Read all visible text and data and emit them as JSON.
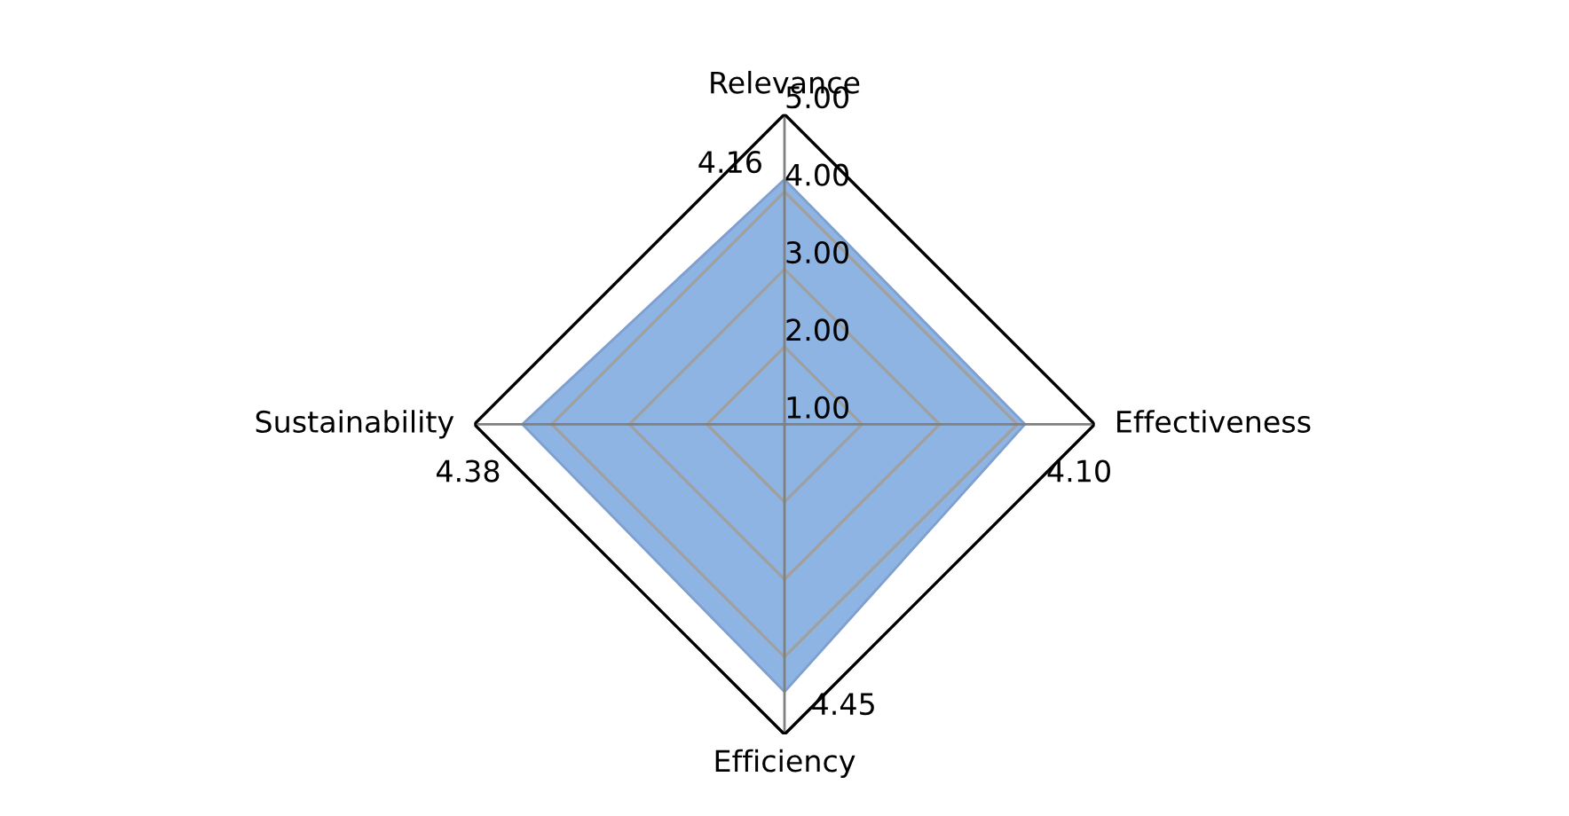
{
  "chart_data": {
    "type": "radar",
    "categories": [
      "Relevance",
      "Effectiveness",
      "Efficiency",
      "Sustainability"
    ],
    "series": [
      {
        "color": "#8eb4e3",
        "values": [
          4.16,
          4.1,
          4.45,
          4.38
        ],
        "value_labels": [
          "4.16",
          "4.10",
          "4.45",
          "4.38"
        ]
      }
    ],
    "ylim": [
      1,
      5
    ],
    "yticks": [
      {
        "value": 1,
        "label": "1.00"
      },
      {
        "value": 2,
        "label": "2.00"
      },
      {
        "value": 3,
        "label": "3.00"
      },
      {
        "value": 4,
        "label": "4.00"
      },
      {
        "value": 5,
        "label": "5.00"
      }
    ],
    "grid": true
  }
}
